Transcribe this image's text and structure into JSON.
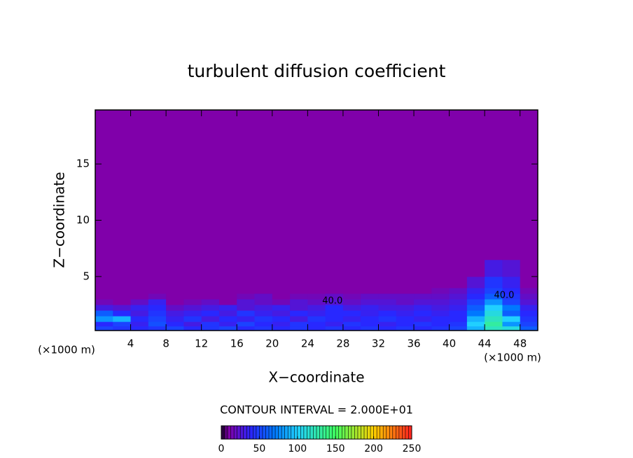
{
  "chart_data": {
    "type": "contour",
    "title": "turbulent diffusion coefficient",
    "x_label": "X−coordinate",
    "y_label": "Z−coordinate",
    "x_unit_label": "(×1000 m)",
    "x2_unit_label": "(×1000 m)",
    "xlim": [
      0,
      50
    ],
    "ylim": [
      0.2,
      19.8
    ],
    "xticks": [
      4,
      8,
      12,
      16,
      20,
      24,
      28,
      32,
      36,
      40,
      44,
      48
    ],
    "yticks": [
      5,
      10,
      15
    ],
    "x_edges": [
      0,
      2,
      4,
      6,
      8,
      10,
      12,
      14,
      16,
      18,
      20,
      22,
      24,
      26,
      28,
      30,
      32,
      34,
      36,
      38,
      40,
      42,
      44,
      46,
      48,
      50
    ],
    "y_edges": [
      0.2,
      0.6,
      1.0,
      1.5,
      2.0,
      2.5,
      3.0,
      3.5,
      4.0,
      5.0,
      6.5,
      19.8
    ],
    "z": [
      [
        50,
        45,
        40,
        45,
        50,
        40,
        45,
        50,
        40,
        45,
        40,
        45,
        40,
        45,
        40,
        45,
        40,
        45,
        40,
        45,
        50,
        90,
        120,
        110,
        60
      ],
      [
        40,
        50,
        35,
        55,
        40,
        30,
        45,
        35,
        50,
        40,
        35,
        45,
        40,
        35,
        45,
        40,
        35,
        40,
        45,
        40,
        45,
        100,
        130,
        80,
        50
      ],
      [
        80,
        90,
        40,
        50,
        35,
        45,
        30,
        40,
        35,
        45,
        40,
        30,
        45,
        40,
        35,
        40,
        45,
        40,
        35,
        40,
        40,
        90,
        120,
        100,
        45
      ],
      [
        60,
        40,
        30,
        45,
        30,
        35,
        40,
        30,
        45,
        35,
        30,
        40,
        35,
        40,
        40,
        35,
        40,
        35,
        40,
        35,
        40,
        70,
        110,
        60,
        40
      ],
      [
        30,
        25,
        35,
        40,
        20,
        25,
        30,
        35,
        25,
        30,
        35,
        25,
        30,
        40,
        30,
        35,
        30,
        30,
        35,
        30,
        35,
        60,
        100,
        70,
        35
      ],
      [
        15,
        10,
        20,
        35,
        10,
        15,
        20,
        10,
        25,
        20,
        15,
        25,
        20,
        25,
        20,
        25,
        25,
        20,
        25,
        25,
        30,
        50,
        80,
        50,
        25
      ],
      [
        10,
        10,
        10,
        15,
        10,
        10,
        10,
        10,
        15,
        20,
        10,
        15,
        15,
        20,
        15,
        20,
        20,
        20,
        20,
        20,
        25,
        40,
        60,
        45,
        20
      ],
      [
        10,
        10,
        10,
        10,
        10,
        10,
        10,
        10,
        10,
        10,
        10,
        10,
        10,
        10,
        10,
        10,
        10,
        10,
        10,
        15,
        20,
        35,
        50,
        40,
        15
      ],
      [
        10,
        10,
        10,
        10,
        10,
        10,
        10,
        10,
        10,
        10,
        10,
        10,
        10,
        10,
        10,
        10,
        10,
        10,
        10,
        10,
        10,
        25,
        45,
        35,
        10
      ],
      [
        10,
        10,
        10,
        10,
        10,
        10,
        10,
        10,
        10,
        10,
        10,
        10,
        10,
        10,
        10,
        10,
        10,
        10,
        10,
        10,
        10,
        10,
        30,
        25,
        10
      ],
      [
        10,
        10,
        10,
        10,
        10,
        10,
        10,
        10,
        10,
        10,
        10,
        10,
        10,
        10,
        10,
        10,
        10,
        10,
        10,
        10,
        10,
        10,
        10,
        10,
        10
      ]
    ],
    "contour_labels": [
      {
        "label": "40.0",
        "x": 26.8,
        "z": 2.8
      },
      {
        "label": "40.0",
        "x": 46.2,
        "z": 3.3
      }
    ],
    "contour_interval_label": "CONTOUR INTERVAL = 2.000E+01",
    "colorscale": [
      [
        0,
        "#140024"
      ],
      [
        10,
        "#8000aa"
      ],
      [
        40,
        "#2828ff"
      ],
      [
        70,
        "#0078ff"
      ],
      [
        100,
        "#20d0ff"
      ],
      [
        150,
        "#40ff60"
      ],
      [
        200,
        "#ffd000"
      ],
      [
        250,
        "#ff2020"
      ]
    ],
    "cbar_lim": [
      0,
      250
    ],
    "cbar_ticks": [
      0,
      50,
      100,
      150,
      200,
      250
    ]
  }
}
